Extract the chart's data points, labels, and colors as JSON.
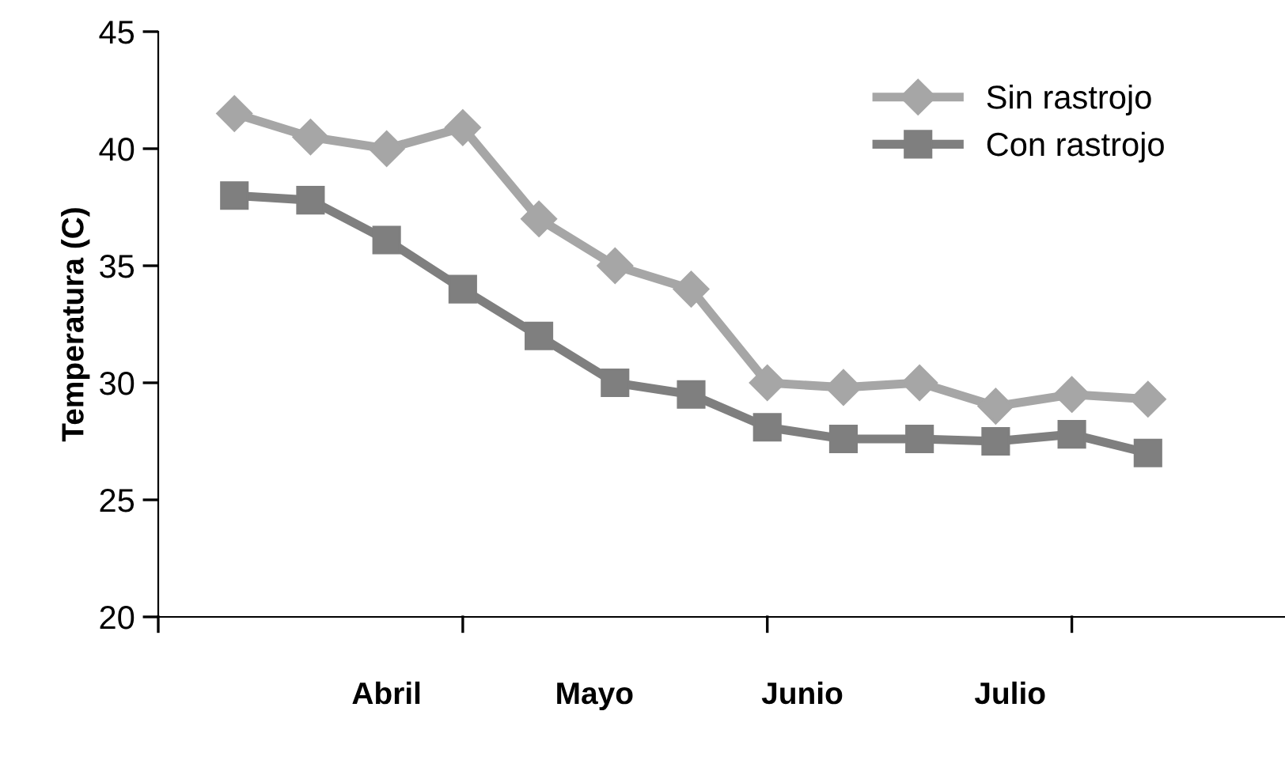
{
  "chart_data": {
    "type": "line",
    "ylabel": "Temperatura (C)",
    "categories": [
      null,
      null,
      null,
      null,
      null,
      null,
      null,
      null,
      null,
      null,
      null,
      null,
      null
    ],
    "series": [
      {
        "name": "Sin rastrojo",
        "color": "#a6a6a6",
        "marker": "diamond",
        "values": [
          41.5,
          40.5,
          40,
          40.9,
          37,
          35,
          34,
          30,
          29.8,
          30,
          29,
          29.5,
          29.3
        ]
      },
      {
        "name": "Con rastrojo",
        "color": "#7f7f7f",
        "marker": "square",
        "values": [
          38,
          37.8,
          36.1,
          34,
          32,
          30,
          29.5,
          28.1,
          27.6,
          27.6,
          27.5,
          27.8,
          27
        ]
      }
    ],
    "annotations": [
      "Abril",
      "Mayo",
      "Junio",
      "Julio"
    ],
    "ylim": [
      20,
      45
    ],
    "yticks": [
      20,
      25,
      30,
      35,
      40,
      45
    ],
    "grid": false,
    "legend": "top right",
    "line_style": "solid"
  }
}
